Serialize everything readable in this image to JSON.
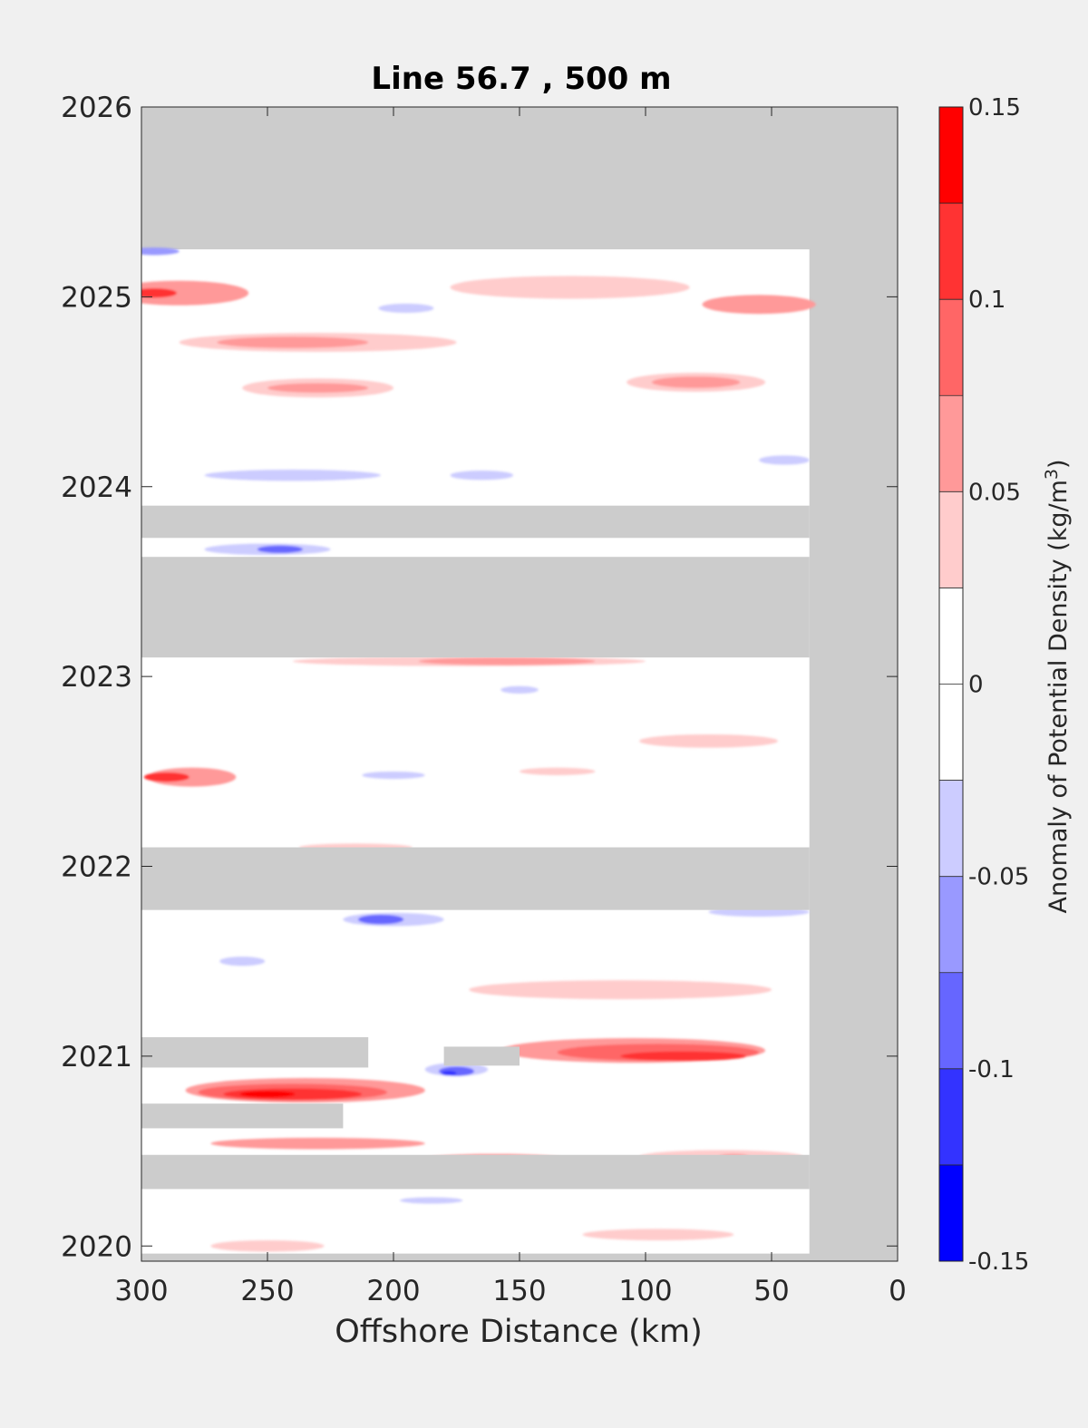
{
  "chart_data": {
    "type": "heatmap",
    "title": "Line 56.7 , 500 m",
    "xlabel": "Offshore Distance (km)",
    "ylabel": "",
    "xlim": [
      300,
      0
    ],
    "ylim": [
      2019.92,
      2026
    ],
    "x_reversed": true,
    "xticks": [
      300,
      250,
      200,
      150,
      100,
      50,
      0
    ],
    "xtick_labels": [
      "300",
      "250",
      "200",
      "150",
      "100",
      "50",
      "0"
    ],
    "yticks": [
      2020,
      2021,
      2022,
      2023,
      2024,
      2025,
      2026
    ],
    "ytick_labels": [
      "2020",
      "2021",
      "2022",
      "2023",
      "2024",
      "2025",
      "2026"
    ],
    "grid": false,
    "nodata_color": "#cccccc",
    "colorbar": {
      "label": "Anomaly of Potential Density (kg/m³)",
      "range": [
        -0.15,
        0.15
      ],
      "ticks": [
        0.15,
        0.1,
        0.05,
        0,
        -0.05,
        -0.1,
        -0.15
      ],
      "tick_labels": [
        "0.15",
        "0.1",
        "0.05",
        "0",
        "-0.05",
        "-0.1",
        "-0.15"
      ],
      "levels": [
        {
          "from": 0.125,
          "to": 0.15,
          "color": "#ff0000"
        },
        {
          "from": 0.1,
          "to": 0.125,
          "color": "#ff3333"
        },
        {
          "from": 0.075,
          "to": 0.1,
          "color": "#ff6666"
        },
        {
          "from": 0.05,
          "to": 0.075,
          "color": "#ff9999"
        },
        {
          "from": 0.025,
          "to": 0.05,
          "color": "#ffcccc"
        },
        {
          "from": 0,
          "to": 0.025,
          "color": "#ffffff"
        },
        {
          "from": -0.025,
          "to": 0,
          "color": "#ffffff"
        },
        {
          "from": -0.05,
          "to": -0.025,
          "color": "#ccccff"
        },
        {
          "from": -0.075,
          "to": -0.05,
          "color": "#9999ff"
        },
        {
          "from": -0.1,
          "to": -0.075,
          "color": "#6666ff"
        },
        {
          "from": -0.125,
          "to": -0.1,
          "color": "#3333ff"
        },
        {
          "from": -0.15,
          "to": -0.125,
          "color": "#0000ff"
        }
      ]
    },
    "data_extent": {
      "x": [
        35,
        300
      ],
      "y": [
        2019.96,
        2025.25
      ]
    },
    "gaps": [
      {
        "x": [
          35,
          300
        ],
        "y": [
          2023.1,
          2023.63
        ]
      },
      {
        "x": [
          35,
          300
        ],
        "y": [
          2023.73,
          2023.9
        ]
      },
      {
        "x": [
          35,
          300
        ],
        "y": [
          2021.77,
          2022.1
        ]
      },
      {
        "x": [
          35,
          300
        ],
        "y": [
          2020.3,
          2020.48
        ]
      },
      {
        "x": [
          220,
          300
        ],
        "y": [
          2020.62,
          2020.75
        ]
      },
      {
        "x": [
          210,
          300
        ],
        "y": [
          2020.94,
          2021.1
        ]
      },
      {
        "x": [
          150,
          180
        ],
        "y": [
          2020.95,
          2021.05
        ]
      }
    ],
    "features": [
      {
        "x": 295,
        "y": 2025.24,
        "w": 20,
        "h": 0.04,
        "value": -0.075
      },
      {
        "x": 285,
        "y": 2025.02,
        "w": 55,
        "h": 0.13,
        "value": 0.05
      },
      {
        "x": 295,
        "y": 2025.02,
        "w": 18,
        "h": 0.05,
        "value": 0.1
      },
      {
        "x": 55,
        "y": 2024.96,
        "w": 45,
        "h": 0.1,
        "value": 0.05
      },
      {
        "x": 130,
        "y": 2025.05,
        "w": 95,
        "h": 0.12,
        "value": 0.025
      },
      {
        "x": 200,
        "y": 2024.94,
        "w": 50,
        "h": 0.1,
        "value": -0.025
      },
      {
        "x": 195,
        "y": 2024.94,
        "w": 22,
        "h": 0.05,
        "value": -0.05
      },
      {
        "x": 230,
        "y": 2024.76,
        "w": 110,
        "h": 0.1,
        "value": 0.025
      },
      {
        "x": 240,
        "y": 2024.76,
        "w": 60,
        "h": 0.06,
        "value": 0.05
      },
      {
        "x": 230,
        "y": 2024.52,
        "w": 60,
        "h": 0.1,
        "value": 0.025
      },
      {
        "x": 230,
        "y": 2024.52,
        "w": 40,
        "h": 0.05,
        "value": 0.05
      },
      {
        "x": 80,
        "y": 2024.55,
        "w": 55,
        "h": 0.1,
        "value": 0.025
      },
      {
        "x": 80,
        "y": 2024.55,
        "w": 35,
        "h": 0.06,
        "value": 0.05
      },
      {
        "x": 230,
        "y": 2024.08,
        "w": 120,
        "h": 0.12,
        "value": -0.025
      },
      {
        "x": 240,
        "y": 2024.06,
        "w": 70,
        "h": 0.06,
        "value": -0.05
      },
      {
        "x": 165,
        "y": 2024.06,
        "w": 25,
        "h": 0.05,
        "value": -0.05
      },
      {
        "x": 130,
        "y": 2024.2,
        "w": 60,
        "h": 0.07,
        "value": -0.025
      },
      {
        "x": 55,
        "y": 2024.14,
        "w": 35,
        "h": 0.08,
        "value": -0.025
      },
      {
        "x": 45,
        "y": 2024.14,
        "w": 20,
        "h": 0.05,
        "value": -0.05
      },
      {
        "x": 250,
        "y": 2023.67,
        "w": 50,
        "h": 0.06,
        "value": -0.05
      },
      {
        "x": 245,
        "y": 2023.67,
        "w": 18,
        "h": 0.04,
        "value": -0.1
      },
      {
        "x": 70,
        "y": 2023.67,
        "w": 55,
        "h": 0.06,
        "value": -0.025
      },
      {
        "x": 170,
        "y": 2023.08,
        "w": 140,
        "h": 0.05,
        "value": 0.025
      },
      {
        "x": 155,
        "y": 2023.08,
        "w": 70,
        "h": 0.04,
        "value": 0.05
      },
      {
        "x": 170,
        "y": 2022.95,
        "w": 80,
        "h": 0.05,
        "value": -0.025
      },
      {
        "x": 150,
        "y": 2022.93,
        "w": 15,
        "h": 0.04,
        "value": -0.05
      },
      {
        "x": 280,
        "y": 2022.88,
        "w": 45,
        "h": 0.1,
        "value": -0.025
      },
      {
        "x": 75,
        "y": 2022.66,
        "w": 55,
        "h": 0.07,
        "value": 0.025
      },
      {
        "x": 280,
        "y": 2022.47,
        "w": 35,
        "h": 0.1,
        "value": 0.05
      },
      {
        "x": 290,
        "y": 2022.47,
        "w": 18,
        "h": 0.05,
        "value": 0.1
      },
      {
        "x": 210,
        "y": 2022.48,
        "w": 70,
        "h": 0.07,
        "value": -0.025
      },
      {
        "x": 200,
        "y": 2022.48,
        "w": 25,
        "h": 0.04,
        "value": -0.05
      },
      {
        "x": 135,
        "y": 2022.5,
        "w": 30,
        "h": 0.04,
        "value": 0.025
      },
      {
        "x": 145,
        "y": 2022.35,
        "w": 32,
        "h": 0.06,
        "value": -0.025
      },
      {
        "x": 215,
        "y": 2022.1,
        "w": 45,
        "h": 0.04,
        "value": 0.025
      },
      {
        "x": 200,
        "y": 2021.72,
        "w": 40,
        "h": 0.07,
        "value": -0.05
      },
      {
        "x": 205,
        "y": 2021.72,
        "w": 18,
        "h": 0.05,
        "value": -0.1
      },
      {
        "x": 55,
        "y": 2021.76,
        "w": 40,
        "h": 0.05,
        "value": -0.05
      },
      {
        "x": 145,
        "y": 2021.61,
        "w": 55,
        "h": 0.06,
        "value": -0.025
      },
      {
        "x": 265,
        "y": 2021.5,
        "w": 40,
        "h": 0.08,
        "value": -0.025
      },
      {
        "x": 260,
        "y": 2021.5,
        "w": 18,
        "h": 0.05,
        "value": -0.05
      },
      {
        "x": 50,
        "y": 2021.55,
        "w": 25,
        "h": 0.06,
        "value": -0.025
      },
      {
        "x": 110,
        "y": 2021.35,
        "w": 120,
        "h": 0.1,
        "value": 0.025
      },
      {
        "x": 105,
        "y": 2021.03,
        "w": 105,
        "h": 0.13,
        "value": 0.05
      },
      {
        "x": 95,
        "y": 2021.02,
        "w": 80,
        "h": 0.09,
        "value": 0.075
      },
      {
        "x": 85,
        "y": 2021.0,
        "w": 50,
        "h": 0.05,
        "value": 0.1
      },
      {
        "x": 170,
        "y": 2020.93,
        "w": 35,
        "h": 0.1,
        "value": -0.025
      },
      {
        "x": 175,
        "y": 2020.93,
        "w": 25,
        "h": 0.07,
        "value": -0.05
      },
      {
        "x": 175,
        "y": 2020.92,
        "w": 14,
        "h": 0.05,
        "value": -0.1
      },
      {
        "x": 178,
        "y": 2020.91,
        "w": 6,
        "h": 0.025,
        "value": -0.125
      },
      {
        "x": 235,
        "y": 2020.82,
        "w": 95,
        "h": 0.13,
        "value": 0.05
      },
      {
        "x": 240,
        "y": 2020.81,
        "w": 75,
        "h": 0.09,
        "value": 0.075
      },
      {
        "x": 240,
        "y": 2020.8,
        "w": 55,
        "h": 0.06,
        "value": 0.1
      },
      {
        "x": 250,
        "y": 2020.8,
        "w": 22,
        "h": 0.035,
        "value": 0.125
      },
      {
        "x": 230,
        "y": 2020.54,
        "w": 85,
        "h": 0.06,
        "value": 0.05
      },
      {
        "x": 160,
        "y": 2020.46,
        "w": 55,
        "h": 0.05,
        "value": 0.05
      },
      {
        "x": 70,
        "y": 2020.47,
        "w": 65,
        "h": 0.07,
        "value": 0.025
      },
      {
        "x": 65,
        "y": 2020.47,
        "w": 12,
        "h": 0.03,
        "value": 0.05
      },
      {
        "x": 190,
        "y": 2020.24,
        "w": 50,
        "h": 0.06,
        "value": -0.025
      },
      {
        "x": 185,
        "y": 2020.24,
        "w": 25,
        "h": 0.035,
        "value": -0.05
      },
      {
        "x": 60,
        "y": 2020.19,
        "w": 40,
        "h": 0.08,
        "value": -0.025
      },
      {
        "x": 250,
        "y": 2020.0,
        "w": 45,
        "h": 0.06,
        "value": 0.025
      },
      {
        "x": 95,
        "y": 2020.06,
        "w": 60,
        "h": 0.06,
        "value": 0.025
      }
    ]
  }
}
